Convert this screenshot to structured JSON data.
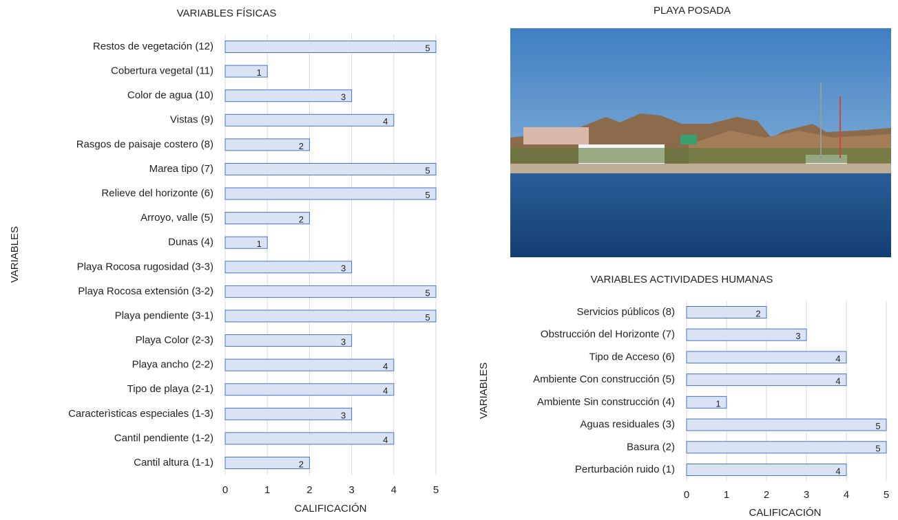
{
  "chart_data": [
    {
      "type": "bar",
      "orientation": "horizontal",
      "title": "VARIABLES FÍSICAS",
      "xlabel": "CALIFICACIÓN",
      "ylabel": "VARIABLES",
      "categories": [
        "Restos de vegetación (12)",
        "Cobertura vegetal (11)",
        "Color de agua (10)",
        "Vistas (9)",
        "Rasgos de paisaje costero (8)",
        "Marea tipo (7)",
        "Relieve del horizonte (6)",
        "Arroyo, valle (5)",
        "Dunas (4)",
        "Playa Rocosa rugosidad (3-3)",
        "Playa Rocosa extensión (3-2)",
        "Playa pendiente (3-1)",
        "Playa Color (2-3)",
        "Playa ancho (2-2)",
        "Tipo de playa (2-1)",
        "Caracterìsticas especiales (1-3)",
        "Cantil pendiente (1-2)",
        "Cantil altura (1-1)"
      ],
      "values": [
        5,
        1,
        3,
        4,
        2,
        5,
        5,
        2,
        1,
        3,
        5,
        5,
        3,
        4,
        4,
        3,
        4,
        2
      ],
      "color": "#dae3f3",
      "edge_color": "#4472c4",
      "xlim": [
        0,
        5
      ],
      "xticks": [
        0,
        1,
        2,
        3,
        4,
        5
      ],
      "grid": true
    },
    {
      "type": "bar",
      "orientation": "horizontal",
      "title": "VARIABLES ACTIVIDADES HUMANAS",
      "xlabel": "CALIFICACIÓN",
      "ylabel": "VARIABLES",
      "categories": [
        "Servicios públicos (8)",
        "Obstrucción del Horizonte (7)",
        "Tipo de Acceso (6)",
        "Ambiente Con construcción (5)",
        "Ambiente Sin construcción (4)",
        "Aguas residuales (3)",
        "Basura (2)",
        "Perturbación ruido (1)"
      ],
      "values": [
        2,
        3,
        4,
        4,
        1,
        5,
        5,
        4
      ],
      "color": "#dae3f3",
      "edge_color": "#4472c4",
      "xlim": [
        0,
        5
      ],
      "xticks": [
        0,
        1,
        2,
        3,
        4,
        5
      ],
      "grid": true
    }
  ],
  "photo": {
    "title": "PLAYA POSADA"
  }
}
